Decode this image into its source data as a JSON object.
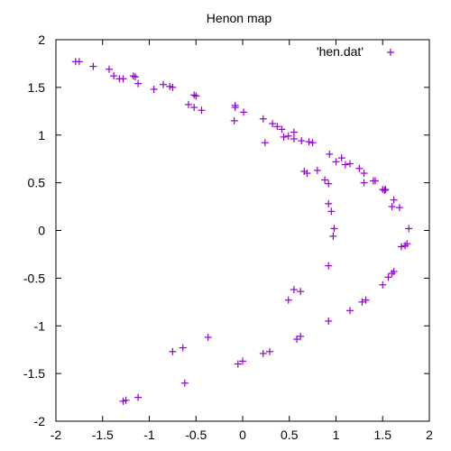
{
  "chart_data": {
    "type": "scatter",
    "title": "Henon map",
    "xlabel": "",
    "ylabel": "",
    "xlim": [
      -2,
      2
    ],
    "ylim": [
      -2,
      2
    ],
    "xticks": [
      "-2",
      "-1.5",
      "-1",
      "-0.5",
      "0",
      "0.5",
      "1",
      "1.5",
      "2"
    ],
    "yticks": [
      "-2",
      "-1.5",
      "-1",
      "-0.5",
      "0",
      "0.5",
      "1",
      "1.5",
      "2"
    ],
    "grid": false,
    "legend_position": "top-right",
    "marker": "plus",
    "series": [
      {
        "name": "'hen.dat'",
        "color": "#9400d3",
        "points": [
          [
            -1.79,
            1.77
          ],
          [
            -1.75,
            1.77
          ],
          [
            -1.6,
            1.72
          ],
          [
            -1.43,
            1.69
          ],
          [
            -1.38,
            1.62
          ],
          [
            -1.32,
            1.59
          ],
          [
            -1.28,
            1.59
          ],
          [
            -1.17,
            1.62
          ],
          [
            -1.15,
            1.61
          ],
          [
            -1.12,
            1.54
          ],
          [
            -0.95,
            1.48
          ],
          [
            -0.85,
            1.53
          ],
          [
            -0.78,
            1.51
          ],
          [
            -0.75,
            1.5
          ],
          [
            -0.52,
            1.42
          ],
          [
            -0.5,
            1.41
          ],
          [
            -0.58,
            1.32
          ],
          [
            -0.52,
            1.29
          ],
          [
            -0.44,
            1.26
          ],
          [
            -0.08,
            1.31
          ],
          [
            -0.08,
            1.29
          ],
          [
            0.01,
            1.24
          ],
          [
            -0.09,
            1.15
          ],
          [
            0.22,
            1.17
          ],
          [
            0.32,
            1.12
          ],
          [
            0.37,
            1.09
          ],
          [
            0.42,
            1.06
          ],
          [
            0.44,
            0.98
          ],
          [
            0.49,
            0.99
          ],
          [
            0.55,
            1.03
          ],
          [
            0.55,
            0.96
          ],
          [
            0.63,
            0.94
          ],
          [
            0.71,
            0.93
          ],
          [
            0.75,
            0.92
          ],
          [
            0.24,
            0.92
          ],
          [
            0.66,
            0.62
          ],
          [
            0.69,
            0.6
          ],
          [
            0.8,
            0.63
          ],
          [
            0.93,
            0.8
          ],
          [
            1.0,
            0.72
          ],
          [
            1.06,
            0.76
          ],
          [
            1.1,
            0.69
          ],
          [
            1.15,
            0.7
          ],
          [
            1.25,
            0.65
          ],
          [
            1.3,
            0.6
          ],
          [
            1.4,
            0.52
          ],
          [
            1.42,
            0.52
          ],
          [
            1.3,
            0.5
          ],
          [
            1.5,
            0.43
          ],
          [
            1.52,
            0.42
          ],
          [
            1.53,
            0.43
          ],
          [
            1.62,
            0.32
          ],
          [
            1.68,
            0.24
          ],
          [
            1.6,
            0.25
          ],
          [
            0.88,
            0.53
          ],
          [
            0.92,
            0.49
          ],
          [
            0.92,
            0.28
          ],
          [
            0.95,
            0.2
          ],
          [
            0.98,
            0.02
          ],
          [
            0.97,
            -0.06
          ],
          [
            1.78,
            0.02
          ],
          [
            1.76,
            -0.14
          ],
          [
            1.74,
            -0.16
          ],
          [
            1.7,
            -0.17
          ],
          [
            1.62,
            -0.43
          ],
          [
            1.6,
            -0.45
          ],
          [
            1.56,
            -0.49
          ],
          [
            1.5,
            -0.57
          ],
          [
            1.32,
            -0.73
          ],
          [
            1.28,
            -0.75
          ],
          [
            1.15,
            -0.84
          ],
          [
            0.92,
            -0.37
          ],
          [
            0.92,
            -0.95
          ],
          [
            0.55,
            -0.62
          ],
          [
            0.62,
            -0.64
          ],
          [
            0.49,
            -0.73
          ],
          [
            0.62,
            -1.11
          ],
          [
            0.58,
            -1.14
          ],
          [
            0.29,
            -1.27
          ],
          [
            0.22,
            -1.29
          ],
          [
            0.0,
            -1.37
          ],
          [
            -0.05,
            -1.4
          ],
          [
            -0.37,
            -1.12
          ],
          [
            -0.64,
            -1.23
          ],
          [
            -0.75,
            -1.27
          ],
          [
            -0.62,
            -1.6
          ],
          [
            -1.12,
            -1.75
          ],
          [
            -1.25,
            -1.78
          ],
          [
            -1.28,
            -1.79
          ]
        ]
      }
    ]
  }
}
